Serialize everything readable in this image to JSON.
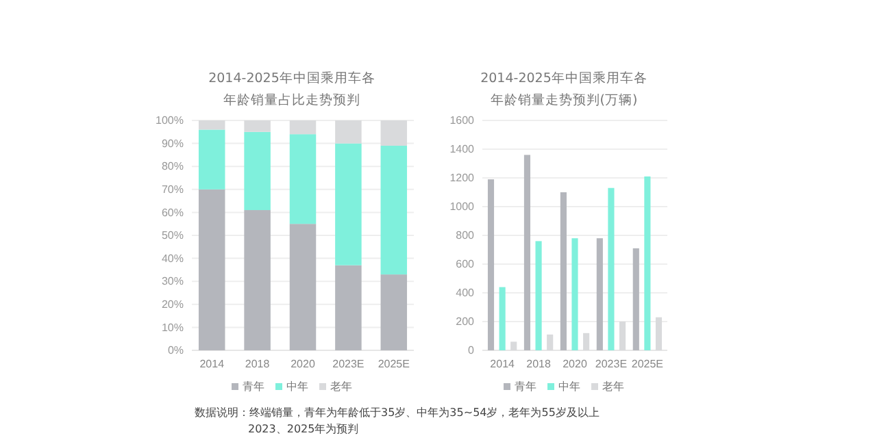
{
  "chart_data": [
    {
      "type": "bar",
      "stacked": true,
      "title": "2014-2025年中国乘用车各年龄销量占比走势预判",
      "categories": [
        "2014",
        "2018",
        "2020",
        "2023E",
        "2025E"
      ],
      "series": [
        {
          "name": "青年",
          "color": "#b4b6bc",
          "values": [
            70,
            61,
            55,
            37,
            33
          ]
        },
        {
          "name": "中年",
          "color": "#7ff0dc",
          "values": [
            26,
            34,
            39,
            53,
            56
          ]
        },
        {
          "name": "老年",
          "color": "#d9dadc",
          "values": [
            4,
            5,
            6,
            10,
            11
          ]
        }
      ],
      "ylim": [
        0,
        100
      ],
      "yticks": [
        {
          "value": 0,
          "label": "0%"
        },
        {
          "value": 10,
          "label": "10%"
        },
        {
          "value": 20,
          "label": "20%"
        },
        {
          "value": 30,
          "label": "30%"
        },
        {
          "value": 40,
          "label": "40%"
        },
        {
          "value": 50,
          "label": "50%"
        },
        {
          "value": 60,
          "label": "60%"
        },
        {
          "value": 70,
          "label": "70%"
        },
        {
          "value": 80,
          "label": "80%"
        },
        {
          "value": 90,
          "label": "90%"
        },
        {
          "value": 100,
          "label": "100%"
        }
      ],
      "grid": "y",
      "legend": "bottom",
      "annotations": [
        "数据说明：终端销量，青年为年龄低于35岁、中年为35~54岁，老年为55岁及以上",
        "2023、2025年为预判"
      ]
    },
    {
      "type": "bar",
      "title": "2014-2025年中国乘用车各年龄销量走势预判(万辆)",
      "categories": [
        "2014",
        "2018",
        "2020",
        "2023E",
        "2025E"
      ],
      "series": [
        {
          "name": "青年",
          "color": "#b4b6bc",
          "values": [
            1190,
            1360,
            1100,
            780,
            710
          ]
        },
        {
          "name": "中年",
          "color": "#7ff0dc",
          "values": [
            440,
            760,
            780,
            1130,
            1210
          ]
        },
        {
          "name": "老年",
          "color": "#d9dadc",
          "values": [
            60,
            110,
            120,
            200,
            230
          ]
        }
      ],
      "ylim": [
        0,
        1600
      ],
      "yticks": [
        0,
        200,
        400,
        600,
        800,
        1000,
        1200,
        1400,
        1600
      ],
      "grid": "y",
      "legend": "bottom"
    }
  ]
}
